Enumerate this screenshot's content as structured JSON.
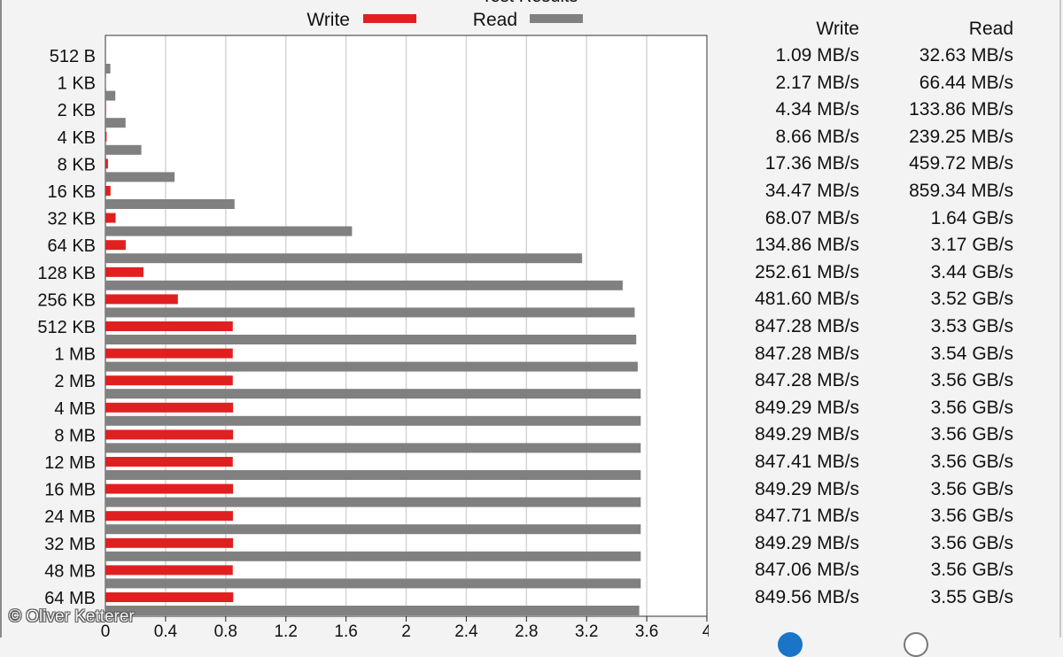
{
  "chart_data": {
    "type": "bar",
    "title": "Test Results",
    "categories": [
      "512 B",
      "1 KB",
      "2 KB",
      "4 KB",
      "8 KB",
      "16 KB",
      "32 KB",
      "64 KB",
      "128 KB",
      "256 KB",
      "512 KB",
      "1 MB",
      "2 MB",
      "4 MB",
      "8 MB",
      "12 MB",
      "16 MB",
      "24 MB",
      "32 MB",
      "48 MB",
      "64 MB"
    ],
    "series": [
      {
        "name": "Write",
        "color": "#e02020",
        "values": [
          0.001,
          0.002,
          0.004,
          0.008,
          0.017,
          0.034,
          0.068,
          0.135,
          0.253,
          0.482,
          0.847,
          0.847,
          0.847,
          0.849,
          0.849,
          0.847,
          0.849,
          0.848,
          0.849,
          0.847,
          0.85
        ]
      },
      {
        "name": "Read",
        "color": "#808080",
        "values": [
          0.033,
          0.066,
          0.134,
          0.239,
          0.46,
          0.859,
          1.64,
          3.17,
          3.44,
          3.52,
          3.53,
          3.54,
          3.56,
          3.56,
          3.56,
          3.56,
          3.56,
          3.56,
          3.56,
          3.56,
          3.55
        ]
      }
    ],
    "orientation": "horizontal",
    "xlim": [
      0,
      4
    ],
    "xticks": [
      "0",
      "0.4",
      "0.8",
      "1.2",
      "1.6",
      "2",
      "2.4",
      "2.8",
      "3.2",
      "3.6",
      "4"
    ],
    "grid": true,
    "legend_position": "top"
  },
  "results_table": {
    "write_header": "Write",
    "read_header": "Read",
    "rows": [
      {
        "write": "1.09 MB/s",
        "read": "32.63 MB/s"
      },
      {
        "write": "2.17 MB/s",
        "read": "66.44 MB/s"
      },
      {
        "write": "4.34 MB/s",
        "read": "133.86 MB/s"
      },
      {
        "write": "8.66 MB/s",
        "read": "239.25 MB/s"
      },
      {
        "write": "17.36 MB/s",
        "read": "459.72 MB/s"
      },
      {
        "write": "34.47 MB/s",
        "read": "859.34 MB/s"
      },
      {
        "write": "68.07 MB/s",
        "read": "1.64 GB/s"
      },
      {
        "write": "134.86 MB/s",
        "read": "3.17 GB/s"
      },
      {
        "write": "252.61 MB/s",
        "read": "3.44 GB/s"
      },
      {
        "write": "481.60 MB/s",
        "read": "3.52 GB/s"
      },
      {
        "write": "847.28 MB/s",
        "read": "3.53 GB/s"
      },
      {
        "write": "847.28 MB/s",
        "read": "3.54 GB/s"
      },
      {
        "write": "847.28 MB/s",
        "read": "3.56 GB/s"
      },
      {
        "write": "849.29 MB/s",
        "read": "3.56 GB/s"
      },
      {
        "write": "849.29 MB/s",
        "read": "3.56 GB/s"
      },
      {
        "write": "847.41 MB/s",
        "read": "3.56 GB/s"
      },
      {
        "write": "849.29 MB/s",
        "read": "3.56 GB/s"
      },
      {
        "write": "847.71 MB/s",
        "read": "3.56 GB/s"
      },
      {
        "write": "849.29 MB/s",
        "read": "3.56 GB/s"
      },
      {
        "write": "847.06 MB/s",
        "read": "3.56 GB/s"
      },
      {
        "write": "849.56 MB/s",
        "read": "3.55 GB/s"
      }
    ]
  },
  "watermark": "© Oliver Ketterer"
}
